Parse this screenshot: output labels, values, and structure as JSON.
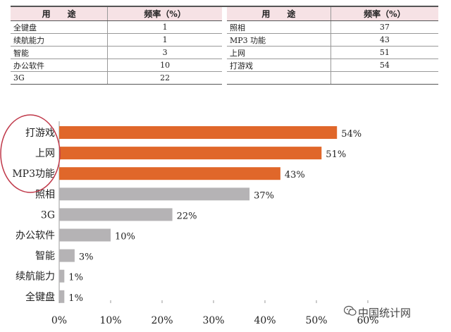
{
  "table": {
    "headers": {
      "use": "用　　途",
      "freq": "频率（%）"
    },
    "left_rows": [
      {
        "use": "全键盘",
        "freq": "1"
      },
      {
        "use": "续航能力",
        "freq": "1"
      },
      {
        "use": "智能",
        "freq": "3"
      },
      {
        "use": "办公软件",
        "freq": "10"
      },
      {
        "use": "3G",
        "freq": "22"
      }
    ],
    "right_rows": [
      {
        "use": "照相",
        "freq": "37"
      },
      {
        "use": "MP3 功能",
        "freq": "43"
      },
      {
        "use": "上网",
        "freq": "51"
      },
      {
        "use": "打游戏",
        "freq": "54"
      },
      {
        "use": "",
        "freq": ""
      }
    ]
  },
  "chart_data": {
    "type": "bar",
    "orientation": "horizontal",
    "categories": [
      "打游戏",
      "上网",
      "MP3功能",
      "照相",
      "3G",
      "办公软件",
      "智能",
      "续航能力",
      "全键盘"
    ],
    "values": [
      54,
      51,
      43,
      37,
      22,
      10,
      3,
      1,
      1
    ],
    "value_labels": [
      "54%",
      "51%",
      "43%",
      "37%",
      "22%",
      "10%",
      "3%",
      "1%",
      "1%"
    ],
    "highlighted": [
      true,
      true,
      true,
      false,
      false,
      false,
      false,
      false,
      false
    ],
    "xlim": [
      0,
      60
    ],
    "xticks": [
      0,
      10,
      20,
      30,
      40,
      50,
      60
    ],
    "xtick_labels": [
      "0%",
      "10%",
      "20%",
      "30%",
      "40%",
      "50%",
      "60%"
    ],
    "colors": {
      "highlight": "#e0672a",
      "normal": "#b5b3b5",
      "axis": "#999999",
      "circle": "#c0394a"
    },
    "grid": false
  },
  "watermark": {
    "text": "中国统计网"
  }
}
